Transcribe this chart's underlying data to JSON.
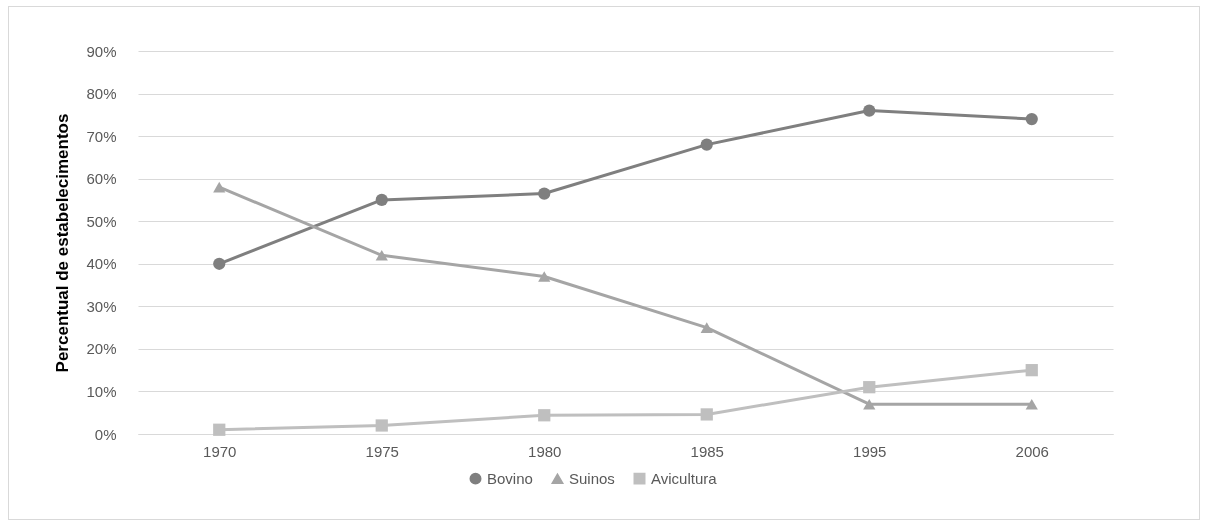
{
  "chart_data": {
    "type": "line",
    "ylabel": "Percentual de estabelecimentos",
    "categories": [
      "1970",
      "1975",
      "1980",
      "1985",
      "1995",
      "2006"
    ],
    "series": [
      {
        "name": "Bovino",
        "color": "#7f7f7f",
        "marker": "circle",
        "values": [
          40,
          55,
          56.5,
          68,
          76,
          74
        ]
      },
      {
        "name": "Suinos",
        "color": "#a5a5a5",
        "marker": "triangle",
        "values": [
          58,
          42,
          37,
          25,
          7,
          7
        ]
      },
      {
        "name": "Avicultura",
        "color": "#bfbfbf",
        "marker": "square",
        "values": [
          1,
          2,
          4.4,
          4.6,
          11,
          15
        ]
      }
    ],
    "ylim": [
      0,
      90
    ],
    "yticks": [
      {
        "value": 0,
        "label": "0%"
      },
      {
        "value": 10,
        "label": "10%"
      },
      {
        "value": 20,
        "label": "20%"
      },
      {
        "value": 30,
        "label": "30%"
      },
      {
        "value": 40,
        "label": "40%"
      },
      {
        "value": 50,
        "label": "50%"
      },
      {
        "value": 60,
        "label": "60%"
      },
      {
        "value": 70,
        "label": "70%"
      },
      {
        "value": 80,
        "label": "80%"
      },
      {
        "value": 90,
        "label": "90%"
      }
    ],
    "grid": "y",
    "legend": "bottom"
  }
}
